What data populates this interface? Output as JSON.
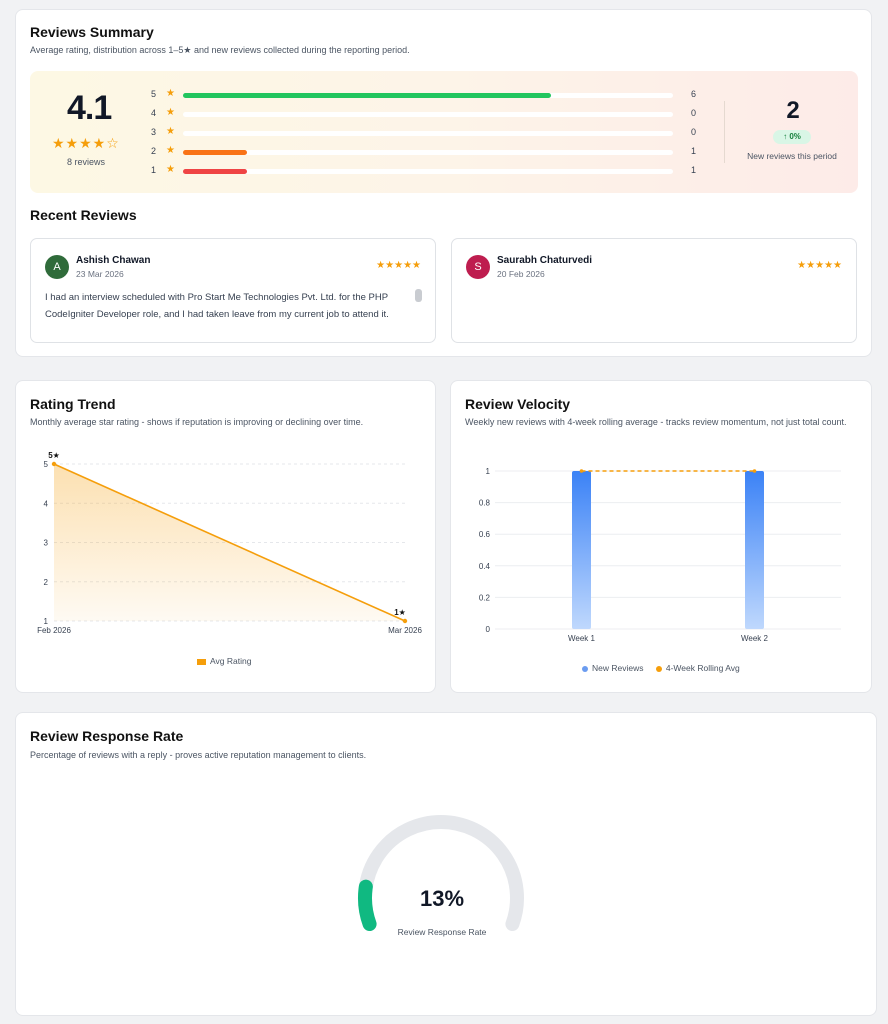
{
  "summary": {
    "title": "Reviews Summary",
    "subtitle": "Average rating, distribution across 1–5★ and new reviews collected during the reporting period.",
    "average": "4.1",
    "average_stars": "★★★★☆",
    "review_count": "8 reviews",
    "star_glyph": "★",
    "distribution": [
      {
        "stars": "5",
        "count": "6",
        "fraction": 0.75,
        "color": "#22c55e"
      },
      {
        "stars": "4",
        "count": "0",
        "fraction": 0,
        "color": "#84cc16"
      },
      {
        "stars": "3",
        "count": "0",
        "fraction": 0,
        "color": "#f59e0b"
      },
      {
        "stars": "2",
        "count": "1",
        "fraction": 0.13,
        "color": "#f97316"
      },
      {
        "stars": "1",
        "count": "1",
        "fraction": 0.13,
        "color": "#ef4444"
      }
    ],
    "new_reviews": "2",
    "new_change": "↑ 0%",
    "new_label": "New reviews this period"
  },
  "recent": {
    "title": "Recent Reviews",
    "reviews": [
      {
        "initial": "A",
        "name": "Ashish Chawan",
        "date": "23 Mar 2026",
        "stars": "★★★★★",
        "avatar_color": "#2f6b3a",
        "text": "I had an interview scheduled with Pro Start Me Technologies Pvt. Ltd. for the PHP CodeIgniter Developer role, and I had taken leave from my current job to attend it."
      },
      {
        "initial": "S",
        "name": "Saurabh Chaturvedi",
        "date": "20 Feb 2026",
        "stars": "★★★★★",
        "avatar_color": "#be1d4f",
        "text": ""
      }
    ]
  },
  "trend": {
    "title": "Rating Trend",
    "subtitle": "Monthly average star rating - shows if reputation is improving or declining over time.",
    "legend": "Avg Rating",
    "color": "#f59e0b"
  },
  "velocity": {
    "title": "Review Velocity",
    "subtitle": "Weekly new reviews with 4-week rolling average - tracks review momentum, not just total count.",
    "legend_bars": "New Reviews",
    "legend_line": "4-Week Rolling Avg",
    "bar_color": "#3b82f6",
    "line_color": "#f59e0b"
  },
  "response": {
    "title": "Review Response Rate",
    "subtitle": "Percentage of reviews with a reply - proves active reputation management to clients.",
    "value": "13%",
    "fraction": 0.13,
    "label": "Review Response Rate",
    "color": "#10b981"
  },
  "chart_data": [
    {
      "type": "area",
      "x": [
        "Feb 2026",
        "Mar 2026"
      ],
      "series": [
        {
          "name": "Avg Rating",
          "values": [
            5,
            1
          ]
        }
      ],
      "point_labels": [
        "5★",
        "1★"
      ],
      "xlabel": "",
      "ylabel": "",
      "ylim": [
        1,
        5
      ],
      "yticks": [
        "1",
        "2",
        "3",
        "4",
        "5"
      ],
      "grid": true,
      "legend": "bottom"
    },
    {
      "type": "bar",
      "categories": [
        "Week 1",
        "Week 2"
      ],
      "series": [
        {
          "name": "New Reviews",
          "values": [
            1,
            1
          ]
        },
        {
          "name": "4-Week Rolling Avg",
          "values": [
            1,
            1
          ]
        }
      ],
      "xlabel": "",
      "ylabel": "",
      "ylim": [
        0,
        1
      ],
      "yticks": [
        "0",
        "0.2",
        "0.4",
        "0.6",
        "0.8",
        "1"
      ],
      "grid": true,
      "legend": "bottom"
    }
  ]
}
